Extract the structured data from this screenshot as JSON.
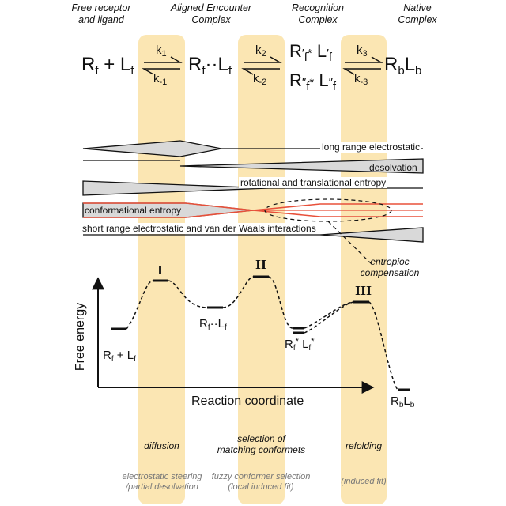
{
  "headers": {
    "free": [
      "Free receptor",
      "and ligand"
    ],
    "aligned": [
      "Aligned Encounter",
      "Complex"
    ],
    "recognition": [
      "Recognition",
      "Complex"
    ],
    "native": [
      "Native",
      "Complex"
    ]
  },
  "equation": {
    "R": "R",
    "L": "L",
    "f": "f",
    "b": "b",
    "plus": "+",
    "dots": "··",
    "star": "*",
    "k": "k",
    "k1": "1",
    "km1": "-1",
    "k2": "2",
    "km2": "-2",
    "k3": "3",
    "km3": "-3"
  },
  "interactions": {
    "long_range": "long range electrostatic",
    "desolvation": "desolvation",
    "rot_trans": "rotational and translational entropy",
    "conformational": "conformational entropy",
    "short_range": "short range electrostatic and van der Waals interactions",
    "entropic_compensation": [
      "entropioc",
      "compensation"
    ]
  },
  "energy": {
    "ylabel": "Free energy",
    "xlabel": "Reaction coordinate",
    "transition_states": [
      "I",
      "II",
      "III"
    ]
  },
  "processes": {
    "diffusion": "diffusion",
    "selection": [
      "selection of",
      "matching conformets"
    ],
    "refolding": "refolding"
  },
  "footnotes": {
    "first": [
      "electrostatic steering",
      "/partial desolvation"
    ],
    "second": [
      "fuzzy conformer selection",
      "(local induced fit)"
    ],
    "third": "(induced fit)"
  },
  "colors": {
    "band": "#fbe6b3",
    "wedge_fill": "#d9d9d9",
    "conformational_line": "#e8503a"
  }
}
